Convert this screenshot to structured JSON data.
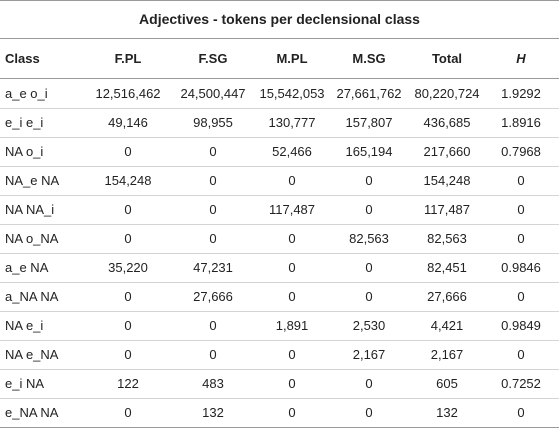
{
  "table": {
    "title": "Adjectives - tokens per declensional class",
    "columns": [
      "Class",
      "F.PL",
      "F.SG",
      "M.PL",
      "M.SG",
      "Total",
      "H"
    ],
    "rows": [
      [
        "a_e o_i",
        "12,516,462",
        "24,500,447",
        "15,542,053",
        "27,661,762",
        "80,220,724",
        "1.9292"
      ],
      [
        "e_i e_i",
        "49,146",
        "98,955",
        "130,777",
        "157,807",
        "436,685",
        "1.8916"
      ],
      [
        "NA o_i",
        "0",
        "0",
        "52,466",
        "165,194",
        "217,660",
        "0.7968"
      ],
      [
        "NA_e NA",
        "154,248",
        "0",
        "0",
        "0",
        "154,248",
        "0"
      ],
      [
        "NA NA_i",
        "0",
        "0",
        "117,487",
        "0",
        "117,487",
        "0"
      ],
      [
        "NA o_NA",
        "0",
        "0",
        "0",
        "82,563",
        "82,563",
        "0"
      ],
      [
        "a_e NA",
        "35,220",
        "47,231",
        "0",
        "0",
        "82,451",
        "0.9846"
      ],
      [
        "a_NA NA",
        "0",
        "27,666",
        "0",
        "0",
        "27,666",
        "0"
      ],
      [
        "NA e_i",
        "0",
        "0",
        "1,891",
        "2,530",
        "4,421",
        "0.9849"
      ],
      [
        "NA e_NA",
        "0",
        "0",
        "0",
        "2,167",
        "2,167",
        "0"
      ],
      [
        "e_i NA",
        "122",
        "483",
        "0",
        "0",
        "605",
        "0.7252"
      ],
      [
        "e_NA NA",
        "0",
        "132",
        "0",
        "0",
        "132",
        "0"
      ]
    ]
  }
}
